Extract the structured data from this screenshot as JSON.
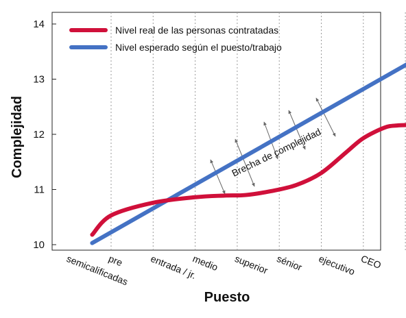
{
  "chart_data": {
    "type": "line",
    "xlabel": "Puesto",
    "ylabel": "Complejidad",
    "categories": [
      "semicalificadas",
      "pre",
      "entrada / jr.",
      "medio",
      "superior",
      "sénior",
      "ejecutivo",
      "CEO"
    ],
    "ylim": [
      10,
      14
    ],
    "yticks": [
      10,
      11,
      12,
      13,
      14
    ],
    "grid": "vertical dashed at categories",
    "legend_position": "top-left",
    "series": [
      {
        "name": "Nivel real de las personas contratadas",
        "color": "#d0103a",
        "x": [
          -0.45,
          0,
          1,
          2,
          2.7,
          3.2,
          3.8,
          4.4,
          5.0,
          5.6,
          6.0,
          6.5,
          6.8,
          7.2
        ],
        "values": [
          10.18,
          10.53,
          10.76,
          10.86,
          10.89,
          10.9,
          10.97,
          11.08,
          11.3,
          11.68,
          11.93,
          12.12,
          12.16,
          12.17
        ]
      },
      {
        "name": "Nivel esperado según el puesto/trabajo",
        "color": "#4472c4",
        "x": [
          -0.45,
          7.2
        ],
        "values": [
          10.03,
          13.34
        ]
      }
    ],
    "annotations": [
      {
        "text": "Brecha de complejidad"
      }
    ]
  }
}
